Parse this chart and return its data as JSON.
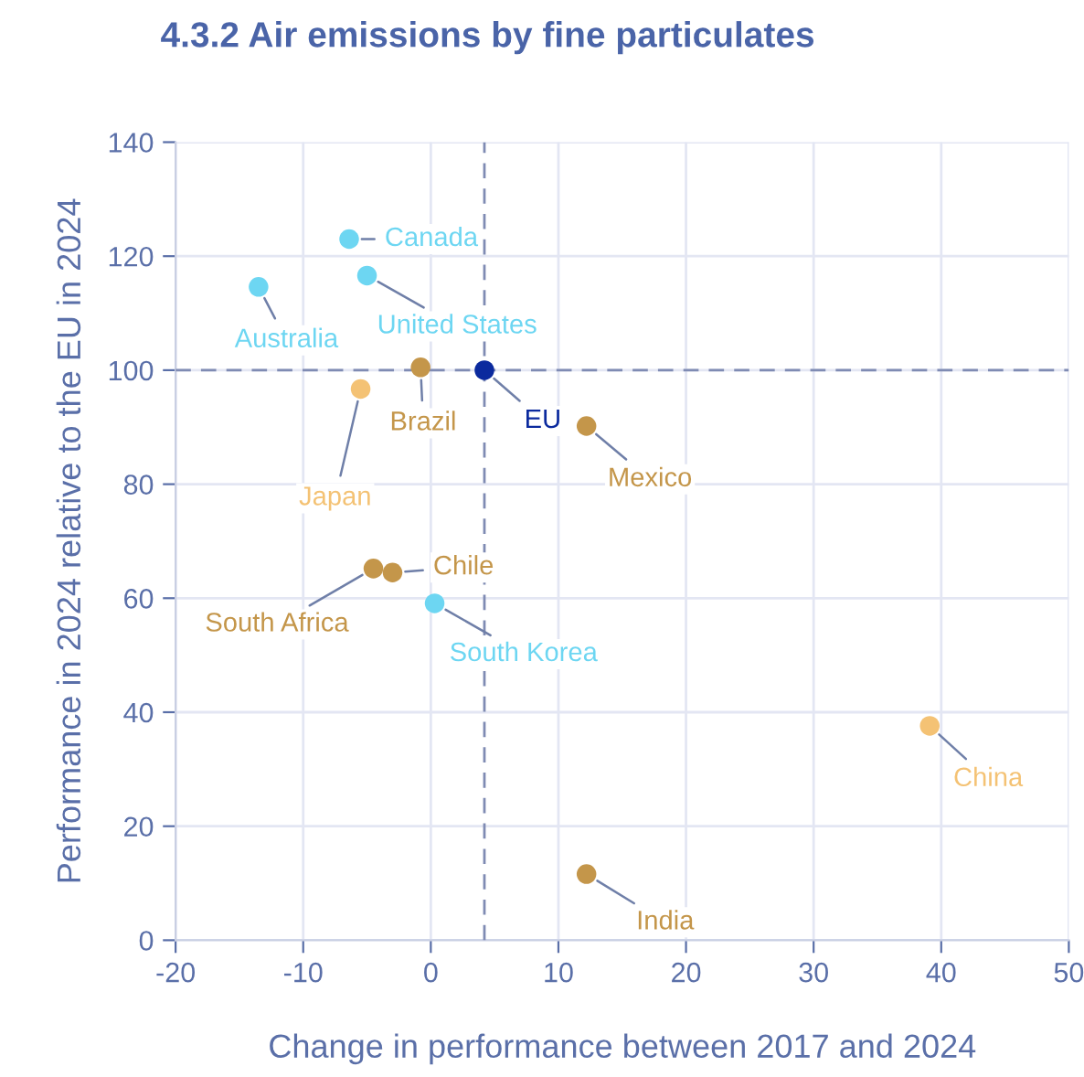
{
  "chart_data": {
    "type": "scatter",
    "title": "4.3.2 Air emissions by fine particulates",
    "xlabel": "Change in performance between 2017 and 2024",
    "ylabel": "Performance in 2024 relative to the EU in 2024",
    "series": [
      {
        "name": "Canada",
        "color": "#6dd6f2",
        "x": [
          -6.4
        ],
        "values": [
          123.0
        ]
      },
      {
        "name": "United States",
        "color": "#6dd6f2",
        "x": [
          -5.0
        ],
        "values": [
          116.6
        ]
      },
      {
        "name": "Australia",
        "color": "#6dd6f2",
        "x": [
          -13.5
        ],
        "values": [
          114.6
        ]
      },
      {
        "name": "Brazil",
        "color": "#c4964a",
        "x": [
          -0.8
        ],
        "values": [
          100.5
        ]
      },
      {
        "name": "EU",
        "color": "#0b2a9e",
        "x": [
          4.2
        ],
        "values": [
          100.0
        ]
      },
      {
        "name": "Japan",
        "color": "#f4c274",
        "x": [
          -5.5
        ],
        "values": [
          96.7
        ]
      },
      {
        "name": "Mexico",
        "color": "#c4964a",
        "x": [
          12.2
        ],
        "values": [
          90.2
        ]
      },
      {
        "name": "South Africa",
        "color": "#c4964a",
        "x": [
          -4.5
        ],
        "values": [
          65.2
        ]
      },
      {
        "name": "Chile",
        "color": "#c4964a",
        "x": [
          -3.0
        ],
        "values": [
          64.5
        ]
      },
      {
        "name": "South Korea",
        "color": "#6dd6f2",
        "x": [
          0.3
        ],
        "values": [
          59.1
        ]
      },
      {
        "name": "China",
        "color": "#f4c274",
        "x": [
          39.1
        ],
        "values": [
          37.6
        ]
      },
      {
        "name": "India",
        "color": "#c4964a",
        "x": [
          12.2
        ],
        "values": [
          11.6
        ]
      }
    ],
    "xlim": [
      -20,
      50
    ],
    "xticks": [
      -20,
      -10,
      0,
      10,
      20,
      30,
      40,
      50
    ],
    "ylim": [
      0,
      140
    ],
    "yticks": [
      0,
      20,
      40,
      60,
      80,
      100,
      120,
      140
    ],
    "ref_lines": [
      {
        "axis": "x",
        "value": 4.2,
        "label": null,
        "color": "#7f8bb3",
        "line_style": "dashed"
      },
      {
        "axis": "y",
        "value": 100,
        "label": null,
        "color": "#7f8bb3",
        "line_style": "dashed"
      }
    ],
    "grid": true,
    "legend": false,
    "marker": "circle"
  }
}
